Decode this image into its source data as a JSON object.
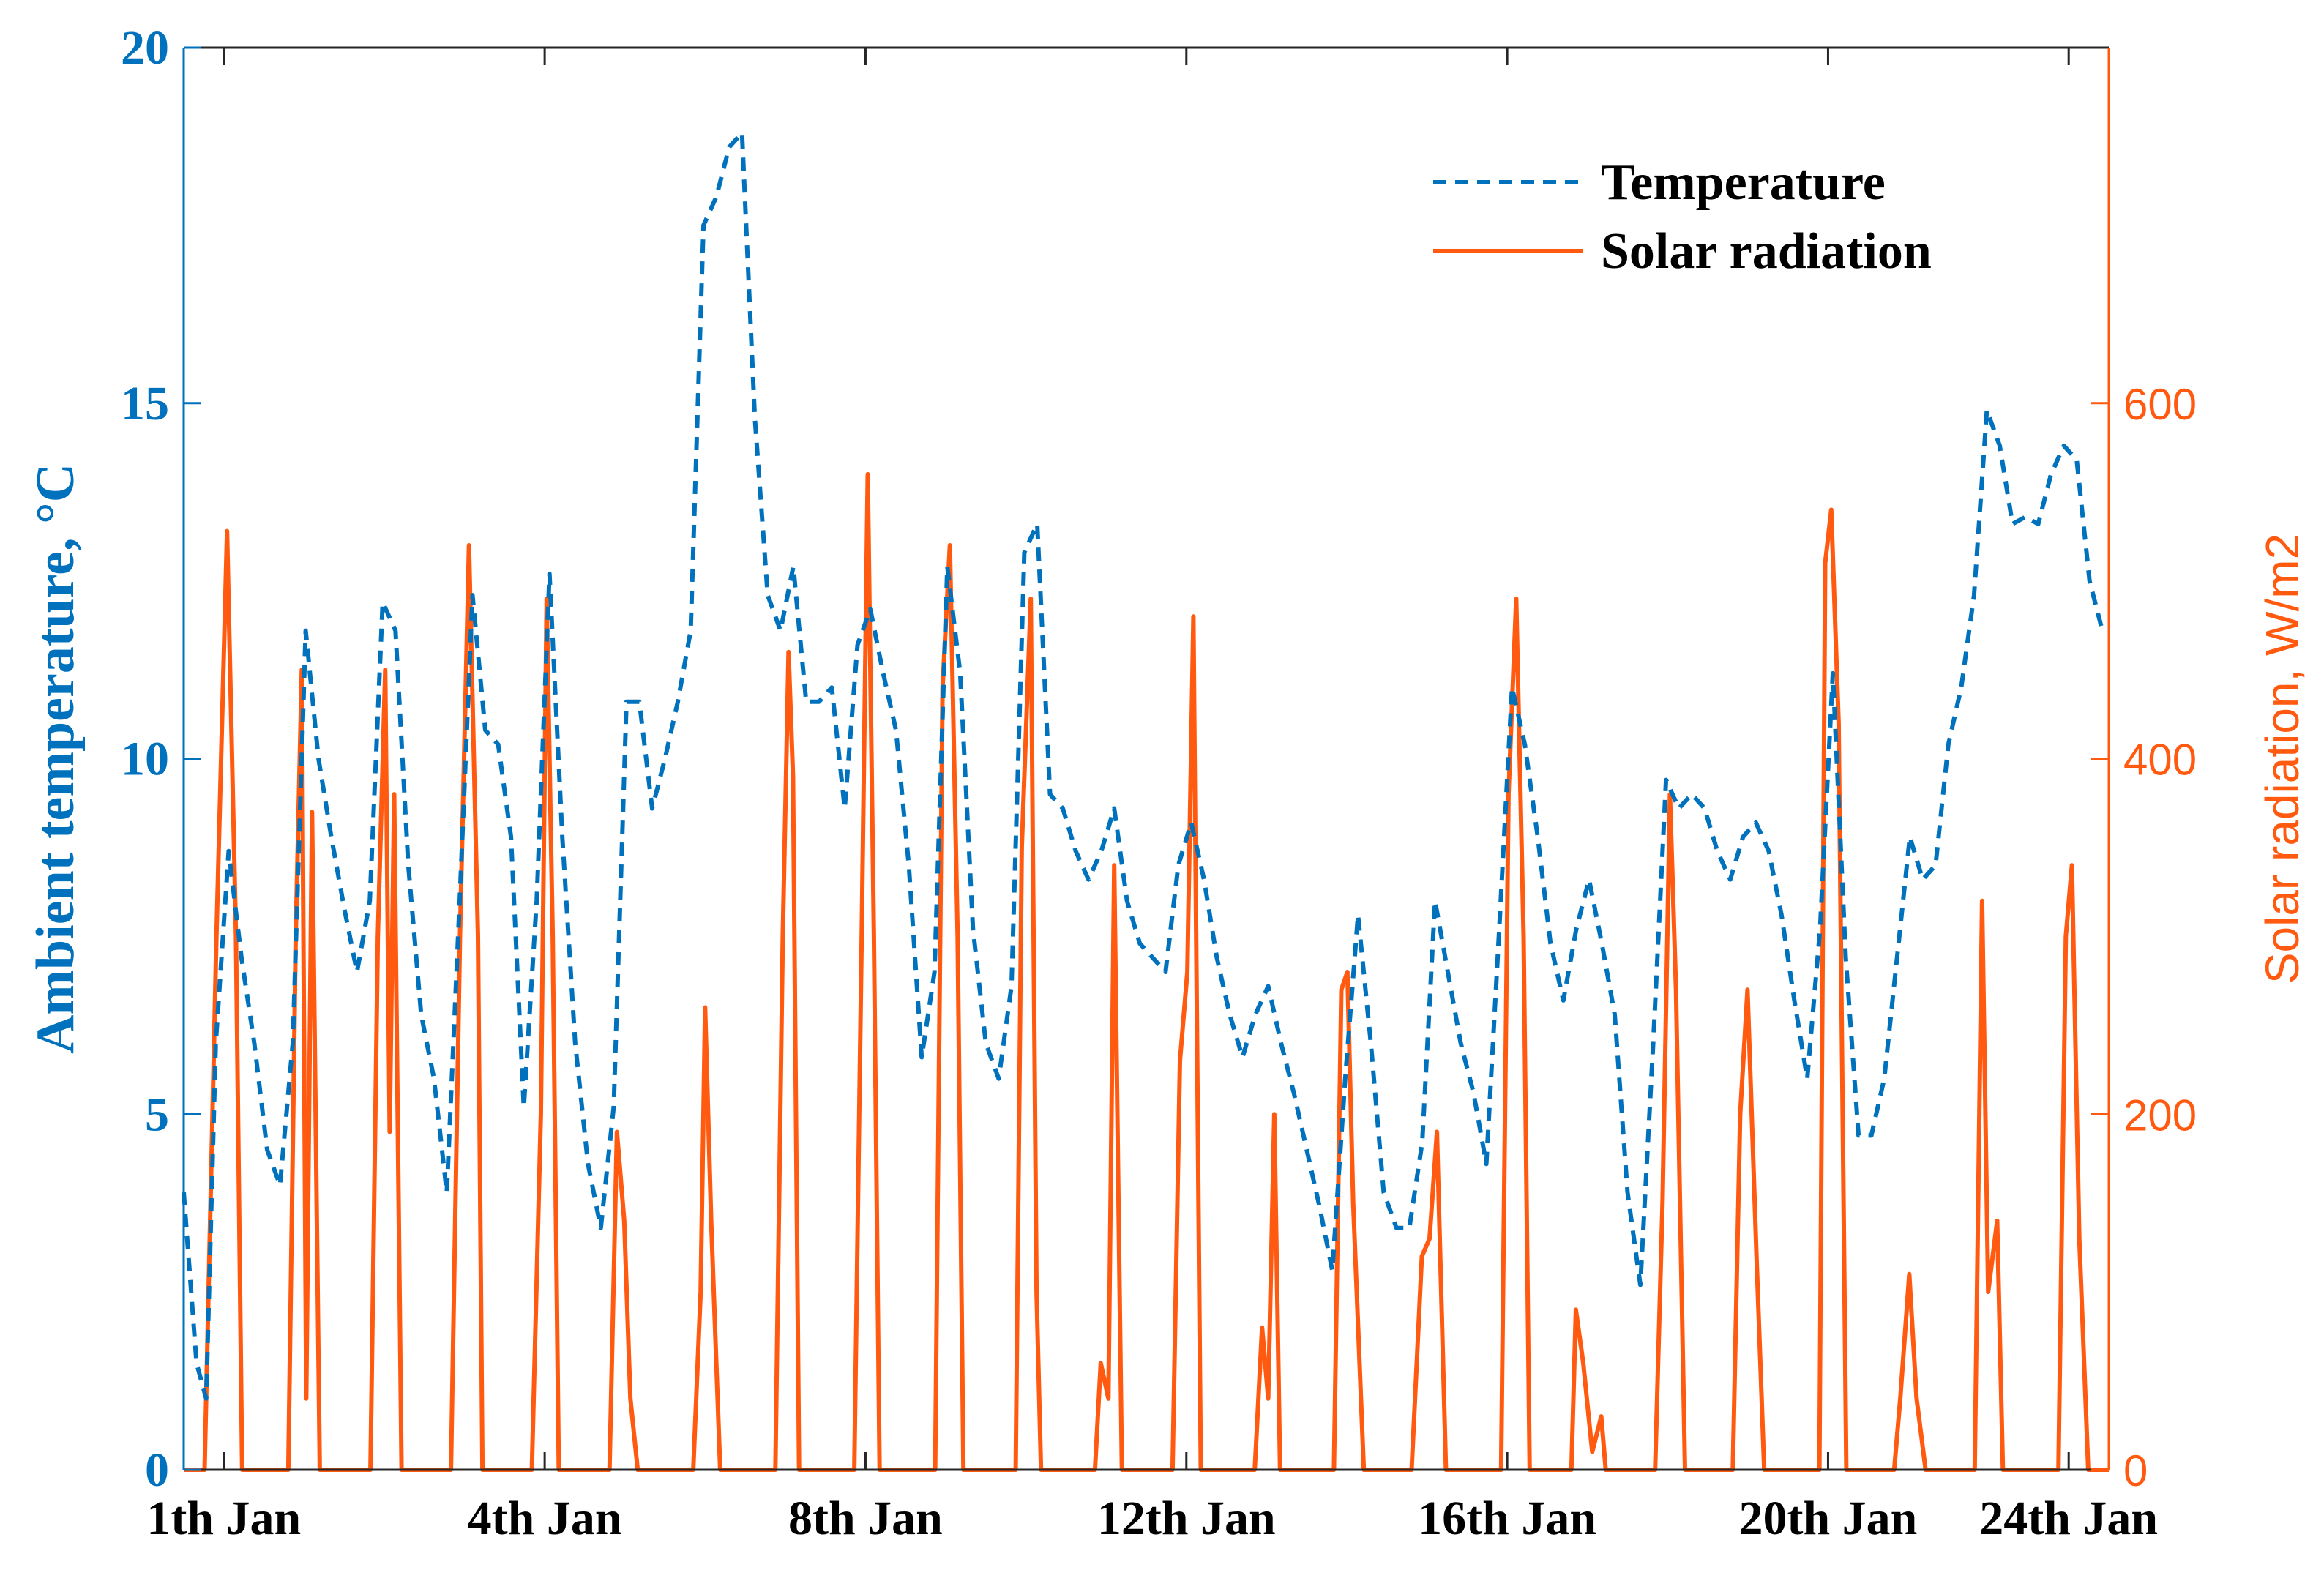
{
  "chart_data": {
    "type": "line",
    "ylabel": "Ambient temperature, °C",
    "y2label": "Solar radiation, W/m2",
    "xlim": [
      0,
      600
    ],
    "xticks": [
      {
        "value": 12.5,
        "label": "1th Jan"
      },
      {
        "value": 112.5,
        "label": "4th Jan"
      },
      {
        "value": 212.5,
        "label": "8th Jan"
      },
      {
        "value": 312.5,
        "label": "12th Jan"
      },
      {
        "value": 412.5,
        "label": "16th Jan"
      },
      {
        "value": 512.5,
        "label": "20th Jan"
      },
      {
        "value": 587.5,
        "label": "24th Jan"
      }
    ],
    "ylim": [
      0,
      20
    ],
    "yticks": [
      0,
      5,
      10,
      15,
      20
    ],
    "y2lim": [
      0,
      800
    ],
    "y2ticks": [
      0,
      200,
      400,
      600
    ],
    "legend": "upper right",
    "series": [
      {
        "name": "Temperature",
        "color": "#0072BD",
        "linestyle": "dashed",
        "x": [
          0,
          4,
          7,
          10,
          14,
          18,
          22,
          26,
          30,
          34,
          38,
          42,
          46,
          50,
          54,
          58,
          62,
          66,
          70,
          74,
          78,
          82,
          86,
          90,
          94,
          98,
          102,
          106,
          110,
          114,
          118,
          122,
          126,
          130,
          134,
          138,
          142,
          146,
          150,
          154,
          158,
          162,
          166,
          170,
          174,
          178,
          182,
          186,
          190,
          194,
          198,
          202,
          206,
          210,
          214,
          218,
          222,
          226,
          230,
          234,
          238,
          242,
          246,
          250,
          254,
          258,
          262,
          266,
          270,
          274,
          278,
          282,
          286,
          290,
          294,
          298,
          302,
          306,
          310,
          314,
          318,
          322,
          326,
          330,
          334,
          338,
          342,
          346,
          350,
          354,
          358,
          362,
          366,
          370,
          374,
          378,
          382,
          386,
          390,
          394,
          398,
          402,
          406,
          410,
          414,
          418,
          422,
          426,
          430,
          434,
          438,
          442,
          446,
          450,
          454,
          458,
          462,
          466,
          470,
          474,
          478,
          482,
          486,
          490,
          494,
          498,
          502,
          506,
          510,
          514,
          518,
          522,
          526,
          530,
          534,
          538,
          542,
          546,
          550,
          554,
          558,
          562,
          566,
          570,
          574,
          578,
          582,
          586,
          590,
          594,
          598
        ],
        "values": [
          3.9,
          1.5,
          1.0,
          6,
          8.7,
          7.2,
          6,
          4.5,
          4.0,
          6,
          11.8,
          10,
          8.9,
          7.9,
          7.0,
          8,
          12.2,
          11.8,
          8.5,
          6.4,
          5.5,
          3.9,
          8,
          12.3,
          10.4,
          10.2,
          8.9,
          5.1,
          8,
          12.6,
          8.9,
          6,
          4.3,
          3.4,
          5.1,
          10.8,
          10.8,
          9.3,
          10,
          10.8,
          11.8,
          17.5,
          17.9,
          18.6,
          18.8,
          14.8,
          12.3,
          11.8,
          12.7,
          10.8,
          10.8,
          11,
          9.3,
          11.6,
          12.1,
          11.2,
          10.4,
          8.5,
          5.8,
          7.0,
          12.7,
          11.2,
          7.6,
          6,
          5.5,
          6.8,
          12.9,
          13.3,
          9.5,
          9.3,
          8.7,
          8.3,
          8.7,
          9.3,
          8,
          7.4,
          7.2,
          7,
          8.5,
          9.1,
          8.3,
          7.2,
          6.4,
          5.8,
          6.4,
          6.8,
          6,
          5.3,
          4.5,
          3.7,
          2.8,
          5.5,
          7.8,
          6,
          3.9,
          3.4,
          3.4,
          4.6,
          8,
          7.0,
          6,
          5.3,
          4.3,
          7.6,
          11,
          10.2,
          8.9,
          7.4,
          6.6,
          7.6,
          8.3,
          7.4,
          6.4,
          3.9,
          2.6,
          6,
          9.7,
          9.3,
          9.5,
          9.3,
          8.7,
          8.3,
          8.9,
          9.1,
          8.7,
          7.8,
          6.6,
          5.5,
          7.6,
          11.2,
          7.2,
          4.7,
          4.7,
          5.5,
          7.2,
          8.9,
          8.3,
          8.5,
          10.2,
          11,
          12.3,
          14.9,
          14.4,
          13.3,
          13.4,
          13.3,
          14,
          14.4,
          14.2,
          12.5,
          11.8
        ]
      },
      {
        "name": "Solar radiation",
        "color": "#FF5A0F",
        "linestyle": "solid",
        "axis": "y2",
        "x": [
          0,
          6.5,
          10.2,
          13.5,
          16.3,
          18.2,
          32.6,
          34.9,
          36.8,
          38.2,
          40.0,
          42.4,
          58.2,
          60.5,
          62.8,
          64.2,
          65.6,
          67.9,
          83.3,
          86.1,
          88.9,
          91.7,
          93.1,
          108.5,
          111.3,
          113.1,
          115.0,
          116.9,
          132.7,
          135.0,
          137.3,
          139.2,
          141.5,
          158.8,
          161.1,
          162.5,
          164.4,
          167.2,
          184.4,
          186.7,
          188.5,
          189.9,
          191.8,
          209.0,
          211.3,
          213.2,
          215.1,
          216.9,
          234.2,
          236.5,
          238.8,
          241.2,
          243.0,
          259.3,
          261.2,
          264.0,
          265.8,
          267.2,
          284.0,
          285.8,
          288.2,
          290.0,
          292.4,
          308.2,
          310.5,
          312.8,
          314.7,
          317.0,
          333.8,
          336.1,
          338.0,
          339.9,
          341.7,
          358.5,
          360.8,
          362.7,
          364.5,
          367.8,
          382.7,
          385.9,
          388.3,
          390.6,
          393.4,
          410.6,
          412.9,
          415.3,
          417.6,
          419.5,
          432.5,
          433.9,
          436.2,
          439.0,
          441.8,
          443.2,
          458.6,
          460.9,
          463.2,
          465.1,
          467.9,
          482.8,
          485.1,
          487.4,
          490.2,
          492.6,
          509.8,
          511.6,
          513.5,
          515.8,
          518.2,
          533.1,
          535.0,
          537.8,
          540.1,
          542.9,
          558.2,
          560.5,
          562.4,
          565.2,
          567.0,
          584.3,
          586.6,
          588.5,
          590.8,
          593.6,
          600
        ],
        "values": [
          0,
          0,
          300,
          528,
          300,
          0,
          0,
          300,
          450,
          40,
          370,
          0,
          0,
          300,
          450,
          190,
          380,
          0,
          0,
          300,
          520,
          300,
          0,
          0,
          200,
          490,
          300,
          0,
          0,
          190,
          140,
          40,
          0,
          0,
          100,
          260,
          140,
          0,
          0,
          300,
          460,
          390,
          0,
          0,
          300,
          560,
          300,
          0,
          0,
          440,
          520,
          300,
          0,
          0,
          350,
          490,
          100,
          0,
          0,
          60,
          40,
          340,
          0,
          0,
          230,
          280,
          480,
          0,
          0,
          80,
          40,
          200,
          0,
          0,
          270,
          280,
          150,
          0,
          0,
          120,
          130,
          190,
          0,
          0,
          380,
          490,
          300,
          0,
          0,
          90,
          60,
          10,
          30,
          0,
          0,
          150,
          380,
          270,
          0,
          0,
          200,
          270,
          120,
          0,
          0,
          510,
          540,
          420,
          0,
          0,
          40,
          110,
          40,
          0,
          0,
          320,
          100,
          140,
          0,
          0,
          300,
          340,
          130,
          0,
          0
        ]
      }
    ]
  }
}
